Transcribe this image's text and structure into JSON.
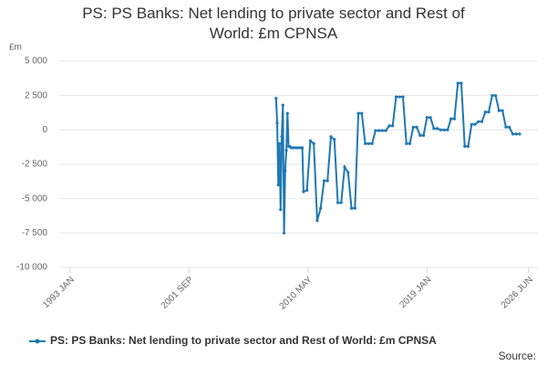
{
  "chart_data": {
    "type": "line",
    "title": "PS: PS Banks: Net lending to private sector and Rest of World: £m CPNSA",
    "y_label": "£m",
    "source": "Source:",
    "x": [
      "2008-01",
      "2008-02",
      "2008-03",
      "2008-04",
      "2008-05",
      "2008-06",
      "2008-07",
      "2008-08",
      "2008-09",
      "2008-10",
      "2008-11",
      "2008-12",
      "2009-01",
      "2009-02",
      "2009-03",
      "2009-04",
      "2009-05",
      "2009-06",
      "2009-07",
      "2009-08",
      "2009-09",
      "2009-10",
      "2009-11",
      "2009-12",
      "2010-01",
      "2010-04",
      "2010-07",
      "2010-10",
      "2011-01",
      "2011-04",
      "2011-07",
      "2011-10",
      "2012-01",
      "2012-04",
      "2012-07",
      "2012-10",
      "2013-01",
      "2013-04",
      "2013-07",
      "2013-10",
      "2014-01",
      "2014-04",
      "2014-07",
      "2014-10",
      "2015-01",
      "2015-04",
      "2015-07",
      "2015-10",
      "2016-01",
      "2016-04",
      "2016-07",
      "2016-10",
      "2017-01",
      "2017-04",
      "2017-07",
      "2017-10",
      "2018-01",
      "2018-04",
      "2018-07",
      "2018-10",
      "2019-01",
      "2019-04",
      "2019-07",
      "2019-10",
      "2020-01",
      "2020-04",
      "2020-07",
      "2020-10",
      "2021-01",
      "2021-04",
      "2021-07",
      "2021-10",
      "2022-01",
      "2022-04",
      "2022-07",
      "2022-10",
      "2023-01",
      "2023-04",
      "2023-07",
      "2023-10",
      "2024-01",
      "2024-04",
      "2024-07",
      "2024-10",
      "2025-01",
      "2025-04",
      "2025-07",
      "2025-10"
    ],
    "series": [
      {
        "name": "PS: PS Banks: Net lending to private sector and Rest of World: £m CPNSA",
        "color": "#1f78b4",
        "values": [
          2300,
          500,
          -4000,
          -1000,
          -5800,
          -500,
          1800,
          -7500,
          -3000,
          -1500,
          1200,
          -1200,
          -1200,
          -1300,
          -1300,
          -1300,
          -1300,
          -1300,
          -1300,
          -1300,
          -1300,
          -1300,
          -1300,
          -1300,
          -4500,
          -4400,
          -800,
          -1000,
          -6600,
          -5700,
          -3700,
          -3700,
          -500,
          -700,
          -5300,
          -5300,
          -2700,
          -3100,
          -5700,
          -5700,
          1200,
          1200,
          -1000,
          -1000,
          -1000,
          -50,
          -50,
          -50,
          -50,
          300,
          300,
          2400,
          2400,
          2400,
          -1000,
          -1000,
          200,
          200,
          -400,
          -400,
          900,
          900,
          100,
          100,
          0,
          0,
          0,
          800,
          800,
          3400,
          3400,
          -1200,
          -1200,
          400,
          400,
          600,
          600,
          1300,
          1300,
          2500,
          2500,
          1400,
          1400,
          200,
          200,
          -300,
          -300,
          -300
        ]
      }
    ],
    "xlim": [
      "1993-01",
      "2026-06"
    ],
    "xticks": [
      {
        "value": "1993-01",
        "label": "1993 JAN"
      },
      {
        "value": "2001-09",
        "label": "2001 SEP"
      },
      {
        "value": "2010-05",
        "label": "2010 MAY"
      },
      {
        "value": "2019-01",
        "label": "2019 JAN"
      },
      {
        "value": "2026-06",
        "label": "2026 JUN"
      }
    ],
    "ylim": [
      -10000,
      5000
    ],
    "yticks": [
      {
        "value": 5000,
        "label": "5 000"
      },
      {
        "value": 2500,
        "label": "2 500"
      },
      0,
      {
        "value": -2500,
        "label": "-2 500"
      },
      {
        "value": -5000,
        "label": "-5 000"
      },
      {
        "value": -7500,
        "label": "-7 500"
      },
      {
        "value": -10000,
        "label": "-10 000"
      }
    ],
    "grid": true,
    "legend": "bottom"
  }
}
